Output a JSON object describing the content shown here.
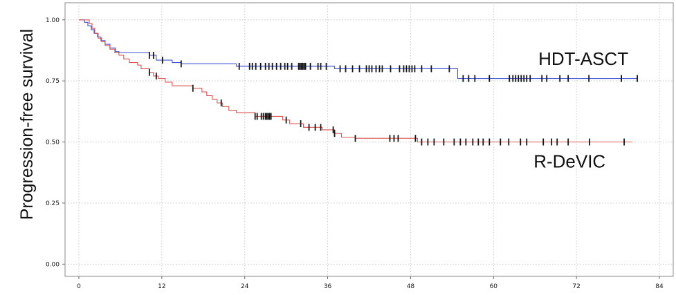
{
  "chart_data": {
    "type": "line",
    "title": "",
    "xlabel": "",
    "ylabel": "Progression-free survival",
    "xlim": [
      -2,
      86
    ],
    "ylim": [
      -0.05,
      1.07
    ],
    "x_ticks": [
      0,
      12,
      24,
      36,
      48,
      60,
      72,
      84
    ],
    "y_ticks": [
      0.0,
      0.25,
      0.5,
      0.75,
      1.0
    ],
    "x_tick_labels": [
      "0",
      "12",
      "24",
      "36",
      "48",
      "60",
      "72",
      "84"
    ],
    "y_tick_labels": [
      "0.00",
      "0.25",
      "0.50",
      "0.75",
      "1.00"
    ],
    "grid": true,
    "series": [
      {
        "name": "HDT-ASCT",
        "color": "#3d4fd6",
        "steps": [
          [
            0,
            1.0
          ],
          [
            0.8,
            0.99
          ],
          [
            1.3,
            0.975
          ],
          [
            1.8,
            0.96
          ],
          [
            2.2,
            0.945
          ],
          [
            2.7,
            0.93
          ],
          [
            3.2,
            0.915
          ],
          [
            3.8,
            0.9
          ],
          [
            4.5,
            0.885
          ],
          [
            5.3,
            0.87
          ],
          [
            5.8,
            0.865
          ],
          [
            10.2,
            0.855
          ],
          [
            11.2,
            0.835
          ],
          [
            13.5,
            0.825
          ],
          [
            14.8,
            0.82
          ],
          [
            22.8,
            0.81
          ],
          [
            37.0,
            0.8
          ],
          [
            54.8,
            0.76
          ],
          [
            80.8,
            0.76
          ]
        ],
        "censored": [
          10.2,
          10.8,
          12.1,
          14.8,
          23.2,
          24.7,
          25.1,
          25.6,
          26.3,
          27.0,
          27.5,
          28.0,
          28.6,
          29.2,
          29.8,
          30.2,
          30.8,
          31.8,
          32.0,
          32.2,
          32.4,
          32.6,
          32.8,
          33.5,
          34.6,
          35.0,
          35.8,
          37.8,
          38.6,
          39.6,
          40.6,
          41.6,
          42.0,
          42.4,
          43.0,
          43.5,
          43.9,
          45.1,
          46.4,
          47.0,
          47.4,
          47.8,
          48.2,
          48.6,
          49.6,
          51.0,
          53.6,
          55.6,
          56.4,
          57.3,
          59.4,
          62.3,
          62.8,
          63.2,
          63.6,
          64.0,
          64.4,
          64.8,
          65.3,
          67.0,
          67.7,
          69.6,
          70.8,
          73.8,
          78.5,
          80.8
        ]
      },
      {
        "name": "R-DeVIC",
        "color": "#d9534f",
        "steps": [
          [
            0,
            1.0
          ],
          [
            1.5,
            0.985
          ],
          [
            1.9,
            0.965
          ],
          [
            2.3,
            0.945
          ],
          [
            2.8,
            0.925
          ],
          [
            3.3,
            0.91
          ],
          [
            3.8,
            0.895
          ],
          [
            4.5,
            0.88
          ],
          [
            5.2,
            0.865
          ],
          [
            5.8,
            0.855
          ],
          [
            6.5,
            0.84
          ],
          [
            7.3,
            0.825
          ],
          [
            8.5,
            0.815
          ],
          [
            9.0,
            0.8
          ],
          [
            10.2,
            0.785
          ],
          [
            10.8,
            0.77
          ],
          [
            11.5,
            0.76
          ],
          [
            12.5,
            0.745
          ],
          [
            13.5,
            0.73
          ],
          [
            16.5,
            0.72
          ],
          [
            17.8,
            0.705
          ],
          [
            18.5,
            0.69
          ],
          [
            19.3,
            0.675
          ],
          [
            20.0,
            0.66
          ],
          [
            20.8,
            0.645
          ],
          [
            21.7,
            0.63
          ],
          [
            22.8,
            0.62
          ],
          [
            25.5,
            0.605
          ],
          [
            29.5,
            0.59
          ],
          [
            30.5,
            0.575
          ],
          [
            32.5,
            0.56
          ],
          [
            35.2,
            0.55
          ],
          [
            37.0,
            0.535
          ],
          [
            38.0,
            0.52
          ],
          [
            40.0,
            0.515
          ],
          [
            49.0,
            0.5
          ],
          [
            80.0,
            0.5
          ]
        ],
        "censored": [
          10.2,
          11.2,
          16.5,
          20.6,
          25.5,
          25.8,
          26.4,
          26.7,
          27.0,
          27.2,
          27.4,
          27.6,
          27.8,
          30.0,
          32.1,
          33.3,
          34.2,
          35.0,
          36.8,
          37.0,
          40.0,
          45.0,
          45.6,
          46.2,
          48.7,
          49.6,
          50.5,
          51.4,
          52.8,
          54.3,
          55.2,
          56.0,
          57.0,
          57.8,
          58.5,
          59.4,
          61.0,
          62.2,
          63.9,
          64.8,
          67.2,
          68.4,
          69.2,
          70.8,
          73.9,
          78.9
        ]
      }
    ],
    "annotations": [
      {
        "text": "HDT-ASCT",
        "x": 73,
        "y": 0.815
      },
      {
        "text": "R-DeVIC",
        "x": 71,
        "y": 0.395
      }
    ]
  }
}
